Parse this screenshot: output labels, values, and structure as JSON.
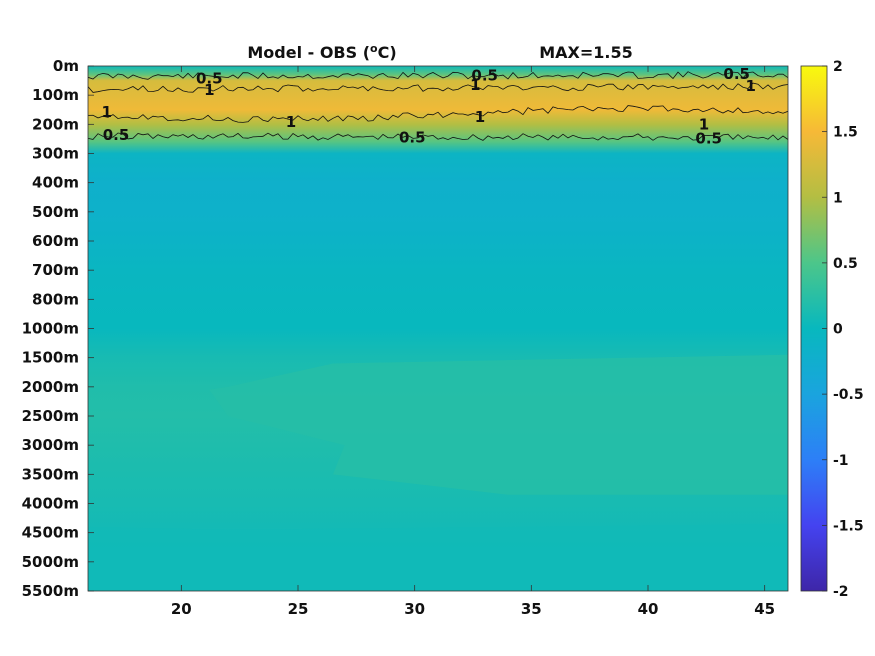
{
  "chart_data": {
    "type": "heatmap",
    "title": "Model - OBS (°C)",
    "title_parts": {
      "prefix": "Model - OBS (",
      "sup": "o",
      "suffix": "C)"
    },
    "max_label": "MAX=1.55",
    "xlabel": "",
    "ylabel": "",
    "xlim": [
      16,
      46
    ],
    "x_ticks": [
      20,
      25,
      30,
      35,
      40,
      45
    ],
    "y_ticks": [
      "0m",
      "100m",
      "200m",
      "300m",
      "400m",
      "500m",
      "600m",
      "700m",
      "800m",
      "1000m",
      "1500m",
      "2000m",
      "2500m",
      "3000m",
      "3500m",
      "4000m",
      "4500m",
      "5000m",
      "5500m"
    ],
    "y_axis_reversed": true,
    "colorbar": {
      "range": [
        -2,
        2
      ],
      "ticks": [
        "2",
        "1.5",
        "1",
        "0.5",
        "0",
        "-0.5",
        "-1",
        "-1.5",
        "-2"
      ],
      "colormap": "parula"
    },
    "contour_levels": [
      0.5,
      1
    ],
    "contour_labels": [
      {
        "text": "0.5",
        "x": 17.2,
        "depth": 237
      },
      {
        "text": "0.5",
        "x": 29.9,
        "depth": 245
      },
      {
        "text": "0.5",
        "x": 42.6,
        "depth": 248
      },
      {
        "text": "0.5",
        "x": 21.2,
        "depth": 42
      },
      {
        "text": "0.5",
        "x": 33.0,
        "depth": 32
      },
      {
        "text": "0.5",
        "x": 43.8,
        "depth": 28
      },
      {
        "text": "1",
        "x": 16.8,
        "depth": 157
      },
      {
        "text": "1",
        "x": 21.2,
        "depth": 82
      },
      {
        "text": "1",
        "x": 24.7,
        "depth": 192
      },
      {
        "text": "1",
        "x": 32.6,
        "depth": 65
      },
      {
        "text": "1",
        "x": 32.8,
        "depth": 175
      },
      {
        "text": "1",
        "x": 42.4,
        "depth": 200
      },
      {
        "text": "1",
        "x": 44.4,
        "depth": 68
      }
    ],
    "profile": [
      {
        "depth": "0m",
        "value": 0.05
      },
      {
        "depth": "100m",
        "value": 1.35
      },
      {
        "depth": "200m",
        "value": 1.0
      },
      {
        "depth": "300m",
        "value": -0.1
      },
      {
        "depth": "400m",
        "value": -0.2
      },
      {
        "depth": "500m",
        "value": -0.18
      },
      {
        "depth": "600m",
        "value": -0.12
      },
      {
        "depth": "700m",
        "value": -0.05
      },
      {
        "depth": "800m",
        "value": -0.02
      },
      {
        "depth": "1000m",
        "value": 0.0
      },
      {
        "depth": "1500m",
        "value": 0.12
      },
      {
        "depth": "2000m",
        "value": 0.18
      },
      {
        "depth": "2500m",
        "value": 0.2
      },
      {
        "depth": "3000m",
        "value": 0.17
      },
      {
        "depth": "3500m",
        "value": 0.14
      },
      {
        "depth": "4000m",
        "value": 0.12
      },
      {
        "depth": "4500m",
        "value": 0.08
      },
      {
        "depth": "5000m",
        "value": 0.05
      },
      {
        "depth": "5500m",
        "value": 0.05
      }
    ]
  }
}
